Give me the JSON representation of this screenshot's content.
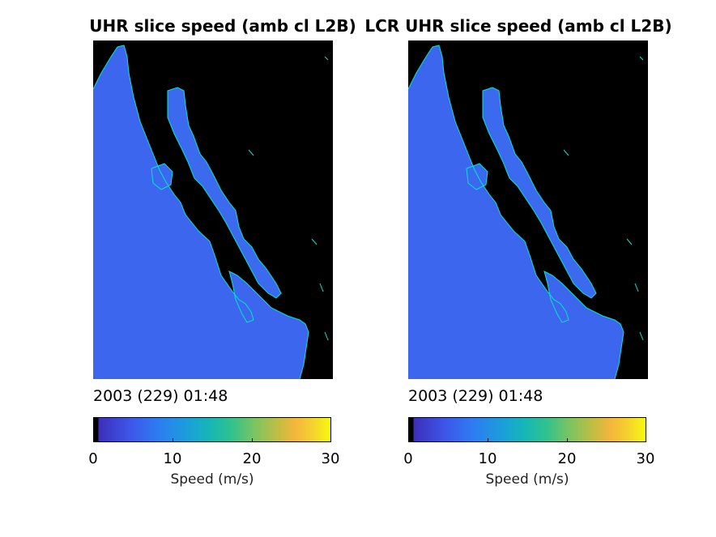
{
  "panels": [
    {
      "title": "UHR slice speed (amb cl L2B)",
      "timestamp": "2003 (229) 01:48",
      "colorbar": {
        "label": "Speed (m/s)",
        "ticks": [
          "0",
          "10",
          "20",
          "30"
        ],
        "min": 0,
        "max": 30
      }
    },
    {
      "title": "LCR UHR slice speed (amb cl L2B)",
      "timestamp": "2003 (229) 01:48",
      "colorbar": {
        "label": "Speed (m/s)",
        "ticks": [
          "0",
          "10",
          "20",
          "30"
        ],
        "min": 0,
        "max": 30
      }
    }
  ],
  "colors": {
    "ocean": "#3d6df0",
    "land": "#000000",
    "coastline": "#00e5d4"
  }
}
